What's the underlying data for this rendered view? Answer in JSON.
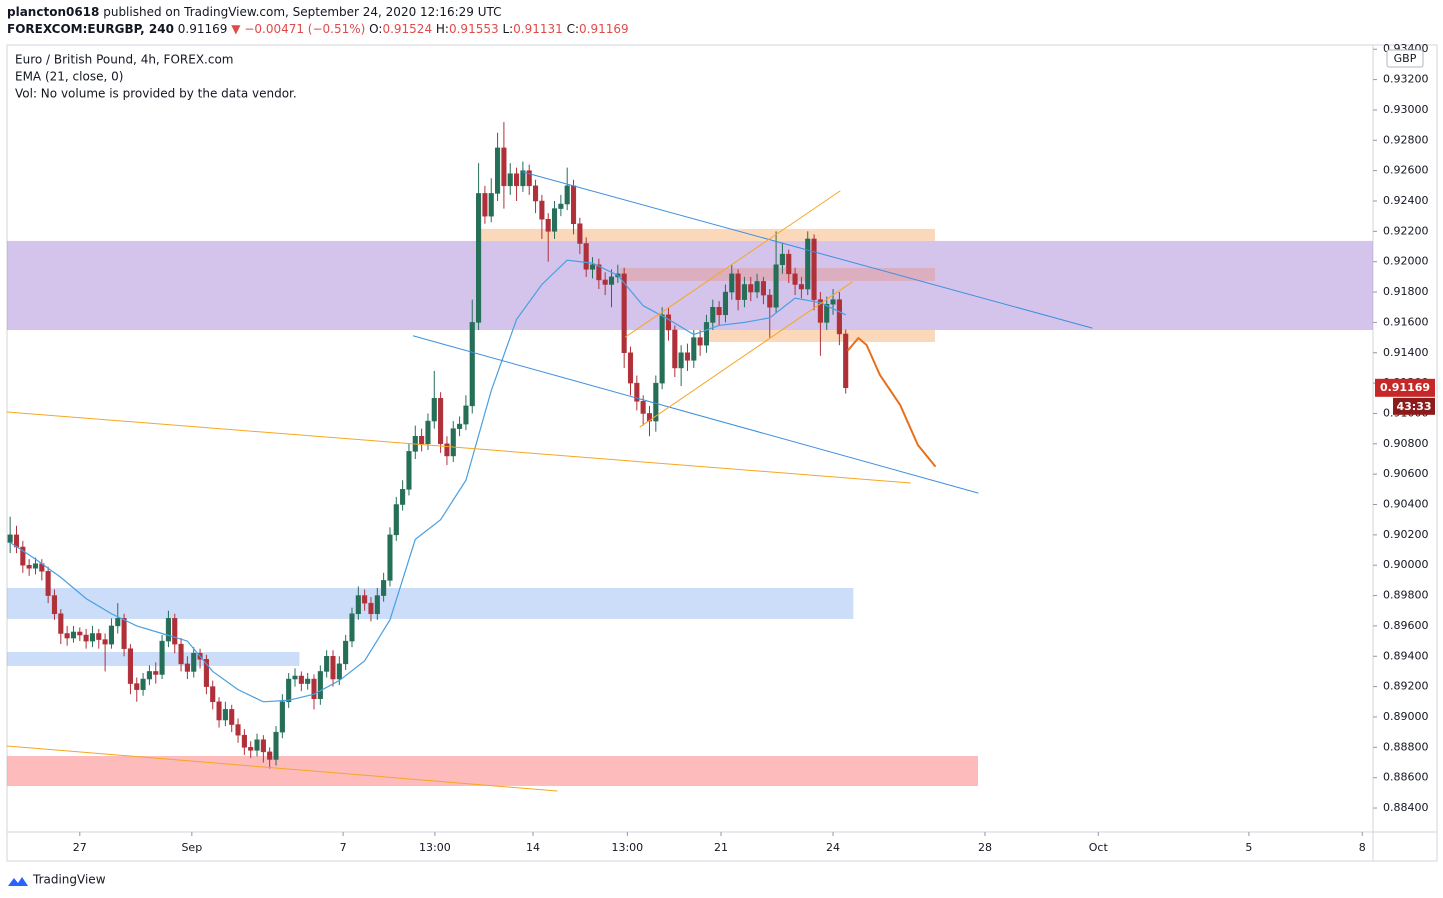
{
  "header": {
    "user": "plancton0618",
    "published": "published on TradingView.com, September 24, 2020 12:16:29 UTC",
    "symbol": "FOREXCOM:EURGBP, 240",
    "last": "0.91169",
    "arrow": "▼",
    "change": "−0.00471 (−0.51%)",
    "ohlc": [
      {
        "label": "O:",
        "value": "0.91524"
      },
      {
        "label": "H:",
        "value": "0.91553"
      },
      {
        "label": "L:",
        "value": "0.91131"
      },
      {
        "label": "C:",
        "value": "0.91169"
      }
    ],
    "footer": "TradingView"
  },
  "chart_data": {
    "type": "candlestick",
    "legend": [
      "Euro / British Pound, 4h, FOREX.com",
      "EMA (21, close, 0)",
      "Vol: No volume is provided by the data vendor."
    ],
    "currency": "GBP",
    "countdown": "43:33",
    "up_color": "#256e57",
    "down_color": "#b0303a",
    "last_color": "#c62828",
    "countdown_color": "#8c1c1c",
    "xlim": [
      -0.5,
      215.3
    ],
    "ylim": [
      0.88242,
      0.93428
    ],
    "grid": false,
    "xticks": [
      {
        "value": 11,
        "label": "27"
      },
      {
        "value": 28.7,
        "label": "Sep"
      },
      {
        "value": 52.6,
        "label": "7"
      },
      {
        "value": 67.1,
        "label": "13:00"
      },
      {
        "value": 82.6,
        "label": "14"
      },
      {
        "value": 97.5,
        "label": "13:00"
      },
      {
        "value": 112.3,
        "label": "21"
      },
      {
        "value": 130,
        "label": "24"
      },
      {
        "value": 154,
        "label": "28"
      },
      {
        "value": 171.9,
        "label": "Oct"
      },
      {
        "value": 195.7,
        "label": "5"
      },
      {
        "value": 213.6,
        "label": "8"
      }
    ],
    "yticks": [
      {
        "value": 0.884,
        "label": "0.88400"
      },
      {
        "value": 0.886,
        "label": "0.88600"
      },
      {
        "value": 0.888,
        "label": "0.88800"
      },
      {
        "value": 0.89,
        "label": "0.89000"
      },
      {
        "value": 0.892,
        "label": "0.89200"
      },
      {
        "value": 0.894,
        "label": "0.89400"
      },
      {
        "value": 0.896,
        "label": "0.89600"
      },
      {
        "value": 0.898,
        "label": "0.89800"
      },
      {
        "value": 0.9,
        "label": "0.90000"
      },
      {
        "value": 0.902,
        "label": "0.90200"
      },
      {
        "value": 0.904,
        "label": "0.90400"
      },
      {
        "value": 0.906,
        "label": "0.90600"
      },
      {
        "value": 0.908,
        "label": "0.90800"
      },
      {
        "value": 0.91,
        "label": "0.91000"
      },
      {
        "value": 0.912,
        "label": "0.91200"
      },
      {
        "value": 0.914,
        "label": "0.91400"
      },
      {
        "value": 0.916,
        "label": "0.91600"
      },
      {
        "value": 0.918,
        "label": "0.91800"
      },
      {
        "value": 0.92,
        "label": "0.92000"
      },
      {
        "value": 0.922,
        "label": "0.92200"
      },
      {
        "value": 0.924,
        "label": "0.92400"
      },
      {
        "value": 0.926,
        "label": "0.92600"
      },
      {
        "value": 0.928,
        "label": "0.92800"
      },
      {
        "value": 0.93,
        "label": "0.93000"
      },
      {
        "value": 0.932,
        "label": "0.93200"
      },
      {
        "value": 0.934,
        "label": "0.93400"
      }
    ],
    "open": [
      0.9015,
      0.902,
      0.9012,
      0.9,
      0.8998,
      0.9001,
      0.8996,
      0.898,
      0.8968,
      0.8955,
      0.8952,
      0.8956,
      0.8954,
      0.895,
      0.8955,
      0.8951,
      0.8948,
      0.896,
      0.8965,
      0.8945,
      0.8922,
      0.8918,
      0.8925,
      0.893,
      0.8928,
      0.895,
      0.8965,
      0.8948,
      0.8935,
      0.893,
      0.8942,
      0.8938,
      0.892,
      0.891,
      0.8898,
      0.8905,
      0.8895,
      0.8888,
      0.888,
      0.8878,
      0.8885,
      0.8877,
      0.8872,
      0.889,
      0.891,
      0.8925,
      0.8927,
      0.8922,
      0.8925,
      0.8912,
      0.893,
      0.894,
      0.8925,
      0.8935,
      0.895,
      0.8968,
      0.898,
      0.8975,
      0.8968,
      0.898,
      0.899,
      0.902,
      0.904,
      0.905,
      0.9075,
      0.9085,
      0.908,
      0.9095,
      0.911,
      0.908,
      0.9072,
      0.909,
      0.9093,
      0.9105,
      0.916,
      0.9245,
      0.923,
      0.9245,
      0.9275,
      0.925,
      0.9258,
      0.925,
      0.926,
      0.925,
      0.924,
      0.9228,
      0.922,
      0.9235,
      0.9238,
      0.925,
      0.9225,
      0.9212,
      0.9195,
      0.9198,
      0.9188,
      0.9185,
      0.919,
      0.9192,
      0.914,
      0.912,
      0.9108,
      0.91,
      0.9095,
      0.912,
      0.9165,
      0.9155,
      0.913,
      0.914,
      0.9135,
      0.915,
      0.9145,
      0.916,
      0.917,
      0.9165,
      0.918,
      0.9192,
      0.9175,
      0.9185,
      0.918,
      0.9187,
      0.9178,
      0.917,
      0.9198,
      0.9205,
      0.9192,
      0.9185,
      0.9182,
      0.9215,
      0.9175,
      0.916,
      0.9172,
      0.9175,
      0.91524
    ],
    "high": [
      0.9032,
      0.9026,
      0.9016,
      0.9004,
      0.9005,
      0.9004,
      0.8999,
      0.8984,
      0.8971,
      0.896,
      0.896,
      0.8959,
      0.8958,
      0.896,
      0.8958,
      0.8955,
      0.8965,
      0.8975,
      0.8968,
      0.8948,
      0.8926,
      0.8929,
      0.8934,
      0.8936,
      0.8954,
      0.897,
      0.8968,
      0.8952,
      0.894,
      0.8946,
      0.8945,
      0.8941,
      0.8924,
      0.8913,
      0.891,
      0.8908,
      0.8899,
      0.8892,
      0.8884,
      0.8889,
      0.8888,
      0.888,
      0.8894,
      0.8915,
      0.8929,
      0.8932,
      0.893,
      0.8929,
      0.8928,
      0.8934,
      0.8944,
      0.8944,
      0.894,
      0.8954,
      0.8972,
      0.8986,
      0.8984,
      0.8979,
      0.8985,
      0.8995,
      0.9025,
      0.9045,
      0.9056,
      0.908,
      0.9092,
      0.909,
      0.91,
      0.9128,
      0.9114,
      0.9085,
      0.9095,
      0.9098,
      0.9112,
      0.9175,
      0.9265,
      0.925,
      0.9255,
      0.9285,
      0.9292,
      0.9265,
      0.9262,
      0.9266,
      0.9264,
      0.9254,
      0.9244,
      0.9232,
      0.924,
      0.9244,
      0.9262,
      0.9254,
      0.9229,
      0.9216,
      0.9203,
      0.9202,
      0.9193,
      0.9195,
      0.9198,
      0.9196,
      0.9144,
      0.9125,
      0.9112,
      0.9105,
      0.9125,
      0.917,
      0.917,
      0.9158,
      0.9145,
      0.9146,
      0.9155,
      0.9155,
      0.9165,
      0.9175,
      0.9174,
      0.9185,
      0.9198,
      0.9195,
      0.919,
      0.919,
      0.9192,
      0.919,
      0.9182,
      0.922,
      0.9212,
      0.9208,
      0.9196,
      0.919,
      0.922,
      0.9218,
      0.918,
      0.9177,
      0.9182,
      0.918,
      0.91553
    ],
    "low": [
      0.9008,
      0.9008,
      0.8995,
      0.8993,
      0.8994,
      0.899,
      0.8975,
      0.8964,
      0.8948,
      0.8947,
      0.8949,
      0.895,
      0.8945,
      0.8946,
      0.8945,
      0.893,
      0.8945,
      0.8955,
      0.894,
      0.8915,
      0.891,
      0.8914,
      0.8921,
      0.8922,
      0.8925,
      0.8946,
      0.8942,
      0.893,
      0.8925,
      0.8926,
      0.8932,
      0.8915,
      0.8905,
      0.8893,
      0.8894,
      0.889,
      0.8883,
      0.8875,
      0.8873,
      0.8874,
      0.887,
      0.8866,
      0.8868,
      0.8886,
      0.8906,
      0.892,
      0.8917,
      0.8918,
      0.8905,
      0.8908,
      0.8926,
      0.892,
      0.8921,
      0.8931,
      0.8946,
      0.8964,
      0.897,
      0.8963,
      0.8964,
      0.8976,
      0.8986,
      0.9016,
      0.9036,
      0.9046,
      0.907,
      0.9075,
      0.9076,
      0.909,
      0.9074,
      0.9066,
      0.9068,
      0.9085,
      0.9089,
      0.91,
      0.9155,
      0.9225,
      0.9226,
      0.924,
      0.9235,
      0.9244,
      0.924,
      0.9246,
      0.9244,
      0.9232,
      0.9215,
      0.92,
      0.9215,
      0.923,
      0.9234,
      0.9218,
      0.9205,
      0.919,
      0.9189,
      0.9182,
      0.9178,
      0.917,
      0.9186,
      0.913,
      0.9112,
      0.9102,
      0.9092,
      0.9085,
      0.9088,
      0.9116,
      0.9148,
      0.9124,
      0.9118,
      0.9128,
      0.913,
      0.9138,
      0.914,
      0.9155,
      0.9158,
      0.916,
      0.9175,
      0.9168,
      0.917,
      0.9174,
      0.9176,
      0.9172,
      0.915,
      0.9166,
      0.9192,
      0.9186,
      0.9178,
      0.9176,
      0.9178,
      0.9168,
      0.9138,
      0.9155,
      0.9165,
      0.9145,
      0.91131
    ],
    "close": [
      0.902,
      0.9012,
      0.9,
      0.8998,
      0.9001,
      0.8996,
      0.898,
      0.8968,
      0.8955,
      0.8952,
      0.8956,
      0.8954,
      0.895,
      0.8955,
      0.8951,
      0.8948,
      0.896,
      0.8965,
      0.8945,
      0.8922,
      0.8918,
      0.8925,
      0.893,
      0.8928,
      0.895,
      0.8965,
      0.8948,
      0.8935,
      0.893,
      0.8942,
      0.8938,
      0.892,
      0.891,
      0.8898,
      0.8905,
      0.8895,
      0.8888,
      0.888,
      0.8878,
      0.8885,
      0.8877,
      0.8872,
      0.889,
      0.891,
      0.8925,
      0.8927,
      0.8922,
      0.8925,
      0.8912,
      0.893,
      0.894,
      0.8925,
      0.8935,
      0.895,
      0.8968,
      0.898,
      0.8975,
      0.8968,
      0.898,
      0.899,
      0.902,
      0.904,
      0.905,
      0.9075,
      0.9085,
      0.908,
      0.9095,
      0.911,
      0.908,
      0.9072,
      0.909,
      0.9093,
      0.9105,
      0.916,
      0.9245,
      0.923,
      0.9245,
      0.9275,
      0.925,
      0.9258,
      0.925,
      0.926,
      0.925,
      0.924,
      0.9228,
      0.922,
      0.9235,
      0.9238,
      0.925,
      0.9225,
      0.9212,
      0.9195,
      0.9198,
      0.9188,
      0.9185,
      0.919,
      0.9192,
      0.914,
      0.912,
      0.9108,
      0.91,
      0.9095,
      0.912,
      0.9165,
      0.9155,
      0.913,
      0.914,
      0.9135,
      0.915,
      0.9145,
      0.916,
      0.917,
      0.9165,
      0.918,
      0.9192,
      0.9175,
      0.9185,
      0.918,
      0.9187,
      0.9178,
      0.917,
      0.9198,
      0.9205,
      0.9192,
      0.9185,
      0.9182,
      0.9215,
      0.9175,
      0.916,
      0.9172,
      0.9175,
      0.91524,
      0.91169
    ],
    "ema": {
      "color": "#4a9fe0",
      "x": [
        0,
        4,
        8,
        12,
        16,
        20,
        24,
        28,
        32,
        36,
        40,
        44,
        48,
        52,
        56,
        60,
        64,
        68,
        72,
        76,
        80,
        84,
        88,
        92,
        96,
        100,
        104,
        108,
        112,
        116,
        120,
        124,
        128,
        132
      ],
      "values": [
        0.9015,
        0.9004,
        0.8992,
        0.8978,
        0.8968,
        0.896,
        0.8955,
        0.895,
        0.893,
        0.8918,
        0.891,
        0.8911,
        0.8915,
        0.8924,
        0.8937,
        0.8964,
        0.9017,
        0.903,
        0.9056,
        0.9115,
        0.9162,
        0.9185,
        0.9201,
        0.9199,
        0.9191,
        0.9171,
        0.9162,
        0.9152,
        0.9158,
        0.916,
        0.9163,
        0.9176,
        0.9173,
        0.9165
      ]
    },
    "zones": [
      {
        "x": [
          -0.5,
          215.3
        ],
        "y": [
          0.9155,
          0.92137
        ],
        "color": "rgba(160,125,210,0.45)"
      },
      {
        "x": [
          74.2,
          146.1
        ],
        "y": [
          0.92137,
          0.92216
        ],
        "color": "rgba(250,190,140,0.6)"
      },
      {
        "x": [
          96.4,
          146.1
        ],
        "y": [
          0.91873,
          0.91959
        ],
        "color": "rgba(230,150,140,0.45)"
      },
      {
        "x": [
          109.8,
          146.1
        ],
        "y": [
          0.91471,
          0.9155
        ],
        "color": "rgba(250,190,140,0.6)"
      },
      {
        "x": [
          -0.5,
          133.2
        ],
        "y": [
          0.89646,
          0.8985
        ],
        "color": "rgba(140,180,240,0.45)"
      },
      {
        "x": [
          -0.5,
          45.7
        ],
        "y": [
          0.89336,
          0.89428
        ],
        "color": "rgba(140,180,240,0.45)"
      },
      {
        "x": [
          -0.5,
          152.9
        ],
        "y": [
          0.88545,
          0.88743
        ],
        "color": "rgba(252,150,150,0.65)"
      }
    ],
    "lines": [
      {
        "x": [
          81,
          170.9
        ],
        "y": [
          0.92591,
          0.91563
        ],
        "color": "#3d8ee0",
        "width": 1
      },
      {
        "x": [
          63.7,
          152.9
        ],
        "y": [
          0.91511,
          0.90476
        ],
        "color": "#3d8ee0",
        "width": 1
      },
      {
        "x": [
          97.2,
          131.1
        ],
        "y": [
          0.91504,
          0.92466
        ],
        "color": "#f5a623",
        "width": 1
      },
      {
        "x": [
          99.5,
          133
        ],
        "y": [
          0.90911,
          0.91866
        ],
        "color": "#f5a623",
        "width": 1
      },
      {
        "x": [
          -0.5,
          142.2
        ],
        "y": [
          0.9101,
          0.90542
        ],
        "color": "#f5a623",
        "width": 1
      },
      {
        "x": [
          -0.5,
          86.4
        ],
        "y": [
          0.88809,
          0.88512
        ],
        "color": "#f5a623",
        "width": 1
      },
      {
        "x": [
          132.4,
          134,
          135.3,
          137.4,
          140.6,
          143.4,
          146.1
        ],
        "y": [
          0.91418,
          0.91497,
          0.91451,
          0.91254,
          0.91056,
          0.90792,
          0.90654
        ],
        "color": "#e8701a",
        "width": 2
      }
    ]
  }
}
